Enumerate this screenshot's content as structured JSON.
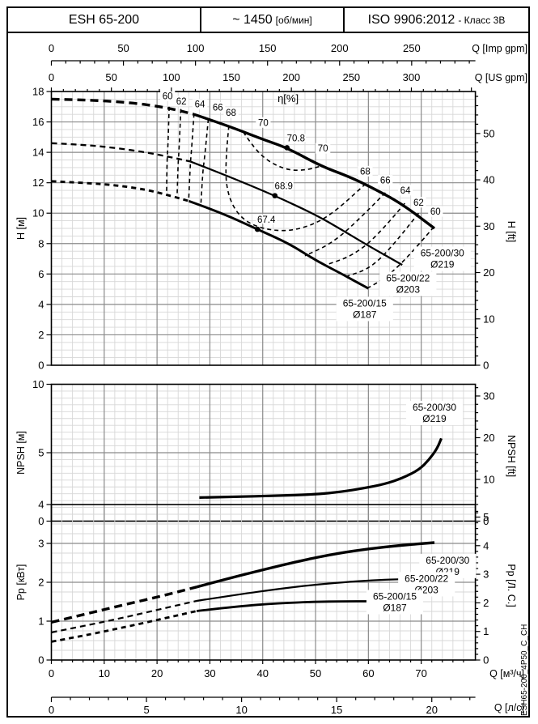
{
  "header": {
    "model": "ESH 65-200",
    "speed": "~ 1450",
    "speed_unit": "[об/мин]",
    "standard": "ISO 9906:2012",
    "standard_class": "- Класс 3В"
  },
  "side_label": "ESH65-200_4P50_C_CH",
  "flow_axes": {
    "imp_gpm": {
      "label": "Q [Imp gpm]",
      "ticks": [
        0,
        50,
        100,
        150,
        200,
        250
      ],
      "minor_step": 10,
      "max_minor": 290,
      "m3h_per_unit": 0.27276
    },
    "us_gpm": {
      "label": "Q [US gpm]",
      "ticks": [
        0,
        50,
        100,
        150,
        200,
        250,
        300
      ],
      "minor_step": 10,
      "max_minor": 350,
      "m3h_per_unit": 0.22712
    },
    "m3h": {
      "label": "Q [м³/ч]",
      "ticks": [
        0,
        10,
        20,
        30,
        40,
        50,
        60,
        70
      ],
      "minor_step": 2,
      "max_minor": 78,
      "m3h_per_unit": 1
    },
    "ls": {
      "label": "Q [л/с]",
      "ticks": [
        0,
        5,
        10,
        15,
        20
      ],
      "minor_step": 1,
      "max_minor": 22,
      "m3h_per_unit": 3.6
    }
  },
  "chart_data": [
    {
      "id": "head",
      "type": "line",
      "x_range_m3h": [
        0,
        80.2
      ],
      "y_left": {
        "label": "H [м]",
        "range": [
          0,
          18
        ],
        "major": 2,
        "minor": 0.5
      },
      "y_right": {
        "label": "H [ft]",
        "m_per_unit": 0.3048,
        "label_step": 10,
        "minor_step": 2,
        "max": 58
      },
      "series": [
        {
          "name": "65-200/30",
          "diameter": "Ø219",
          "dashed": [
            [
              0,
              17.5
            ],
            [
              6,
              17.45
            ],
            [
              12,
              17.35
            ],
            [
              18,
              17.15
            ],
            [
              23,
              16.85
            ],
            [
              27,
              16.5
            ]
          ],
          "solid": [
            [
              27,
              16.5
            ],
            [
              33,
              15.8
            ],
            [
              40,
              14.85
            ],
            [
              44.6,
              14.3
            ],
            [
              51,
              13.1
            ],
            [
              56,
              12.45
            ],
            [
              60,
              11.8
            ],
            [
              66,
              10.7
            ],
            [
              72.5,
              9.0
            ]
          ],
          "bep": {
            "q": 44.6,
            "v": 14.3,
            "eff": "70.8"
          },
          "label_at": [
            74,
            7.0
          ],
          "weight": 3.4,
          "dash": "10 6"
        },
        {
          "name": "65-200/22",
          "diameter": "Ø203",
          "dashed": [
            [
              0,
              14.6
            ],
            [
              6,
              14.5
            ],
            [
              12,
              14.3
            ],
            [
              18,
              14.0
            ],
            [
              23,
              13.65
            ],
            [
              26.3,
              13.4
            ]
          ],
          "solid": [
            [
              26.3,
              13.4
            ],
            [
              33,
              12.5
            ],
            [
              42.3,
              11.15
            ],
            [
              50,
              9.9
            ],
            [
              55,
              8.9
            ],
            [
              60,
              7.85
            ],
            [
              66.4,
              6.6
            ]
          ],
          "bep": {
            "q": 42.3,
            "v": 11.15,
            "eff": "68.9"
          },
          "label_at": [
            67.5,
            5.35
          ],
          "weight": 2.3,
          "dash": "7 5"
        },
        {
          "name": "65-200/15",
          "diameter": "Ø187",
          "dashed": [
            [
              0,
              12.1
            ],
            [
              6,
              12.0
            ],
            [
              12,
              11.85
            ],
            [
              18,
              11.55
            ],
            [
              23,
              11.1
            ],
            [
              26,
              10.8
            ]
          ],
          "solid": [
            [
              26,
              10.8
            ],
            [
              32,
              10.05
            ],
            [
              39,
              8.94
            ],
            [
              45,
              8.0
            ],
            [
              50,
              6.9
            ],
            [
              55,
              6.0
            ],
            [
              60,
              5.05
            ]
          ],
          "bep": {
            "q": 39,
            "v": 8.94,
            "eff": "67.4"
          },
          "label_at": [
            59.3,
            3.7
          ],
          "weight": 2.9,
          "dash": "6 5"
        }
      ],
      "efficiency_label": {
        "text": "η[%]",
        "q": 44.8,
        "h": 17.3
      },
      "efficiency_contours": [
        {
          "value": 60,
          "points": [
            [
              22.3,
              17.0
            ],
            [
              22.1,
              14.6
            ],
            [
              21.9,
              13.6
            ],
            [
              21.8,
              11.3
            ]
          ]
        },
        {
          "value": 62,
          "points": [
            [
              24.5,
              16.85
            ],
            [
              24.2,
              14.3
            ],
            [
              24.0,
              13.4
            ],
            [
              23.8,
              11.15
            ]
          ]
        },
        {
          "value": 64,
          "points": [
            [
              27.0,
              16.55
            ],
            [
              26.5,
              14.0
            ],
            [
              26.3,
              13.3
            ],
            [
              26.0,
              10.95
            ]
          ]
        },
        {
          "value": 66,
          "points": [
            [
              29.7,
              16.2
            ],
            [
              29.0,
              13.6
            ],
            [
              28.7,
              12.9
            ],
            [
              28.3,
              10.6
            ]
          ]
        },
        {
          "value": 68,
          "points": [
            [
              33.6,
              15.75
            ],
            [
              32.8,
              13.0
            ],
            [
              33.5,
              11.0
            ],
            [
              36,
              9.6
            ],
            [
              40,
              8.95
            ],
            [
              45,
              8.8
            ],
            [
              50,
              9.3
            ],
            [
              54,
              10.2
            ],
            [
              59.4,
              11.9
            ]
          ]
        },
        {
          "value": 70,
          "points": [
            [
              36.3,
              15.35
            ],
            [
              38.5,
              14.2
            ],
            [
              41.5,
              13.3
            ],
            [
              45,
              12.8
            ],
            [
              48.5,
              12.85
            ],
            [
              51,
              13.1
            ]
          ]
        },
        {
          "value": 66,
          "points": [
            [
              63.2,
              11.35
            ],
            [
              58,
              9.5
            ],
            [
              53,
              8.0
            ],
            [
              48,
              7.2
            ]
          ]
        },
        {
          "value": 64,
          "points": [
            [
              66.9,
              10.65
            ],
            [
              62,
              8.6
            ],
            [
              57,
              7.2
            ],
            [
              52,
              6.6
            ]
          ]
        },
        {
          "value": 62,
          "points": [
            [
              69.5,
              10.0
            ],
            [
              65,
              8.0
            ],
            [
              60.5,
              6.4
            ],
            [
              56,
              5.85
            ]
          ]
        },
        {
          "value": 60,
          "points": [
            [
              72.4,
              9.1
            ],
            [
              68,
              7.3
            ],
            [
              63.5,
              5.8
            ],
            [
              60,
              5.1
            ]
          ]
        }
      ],
      "efficiency_value_labels": [
        {
          "text": "60",
          "q": 22.0,
          "h": 17.5
        },
        {
          "text": "62",
          "q": 24.6,
          "h": 17.15
        },
        {
          "text": "64",
          "q": 28.1,
          "h": 16.95
        },
        {
          "text": "66",
          "q": 31.5,
          "h": 16.75
        },
        {
          "text": "68",
          "q": 34.0,
          "h": 16.4
        },
        {
          "text": "70",
          "q": 40.1,
          "h": 15.75
        },
        {
          "text": "70",
          "q": 51.4,
          "h": 14.05
        },
        {
          "text": "68",
          "q": 59.4,
          "h": 12.55
        },
        {
          "text": "66",
          "q": 63.2,
          "h": 11.95
        },
        {
          "text": "64",
          "q": 67.0,
          "h": 11.3
        },
        {
          "text": "62",
          "q": 69.5,
          "h": 10.5
        },
        {
          "text": "60",
          "q": 72.7,
          "h": 9.9
        }
      ]
    },
    {
      "id": "npsh",
      "type": "line",
      "x_range_m3h": [
        0,
        80.2
      ],
      "y_left": {
        "label": "NPSH [м]",
        "range": [
          0,
          10
        ],
        "major": 5,
        "minor": 0.5
      },
      "y_right": {
        "label": "NPSH [ft]",
        "m_per_unit": 0.3048,
        "label_step": 10,
        "minor_step": 2,
        "max": 32
      },
      "series": [
        {
          "name": "65-200/30",
          "diameter": "Ø219",
          "solid": [
            [
              28,
              1.72
            ],
            [
              35,
              1.78
            ],
            [
              42,
              1.85
            ],
            [
              50,
              1.95
            ],
            [
              55,
              2.15
            ],
            [
              59,
              2.4
            ],
            [
              63,
              2.7
            ],
            [
              66.5,
              3.15
            ],
            [
              69.6,
              3.76
            ],
            [
              71.5,
              4.5
            ],
            [
              73,
              5.3
            ],
            [
              73.8,
              6.05
            ]
          ],
          "label_at": [
            72.5,
            7.9
          ],
          "weight": 3.2,
          "dash": "10 6"
        }
      ]
    },
    {
      "id": "power",
      "type": "line",
      "x_range_m3h": [
        0,
        80.2
      ],
      "y_left": {
        "label": "Pp [кВт]",
        "range": [
          0,
          4
        ],
        "major": 1,
        "minor": 0.25
      },
      "y_right": {
        "label": "Pp [Л. С.]",
        "m_per_unit": 0.73549,
        "label_step": 1,
        "minor_step": 0.2,
        "max": 5.2
      },
      "series": [
        {
          "name": "65-200/30",
          "diameter": "Ø219",
          "dashed": [
            [
              0,
              0.97
            ],
            [
              7,
              1.2
            ],
            [
              14,
              1.43
            ],
            [
              21,
              1.65
            ],
            [
              27.5,
              1.88
            ]
          ],
          "solid": [
            [
              27.5,
              1.88
            ],
            [
              33,
              2.08
            ],
            [
              40,
              2.32
            ],
            [
              47,
              2.55
            ],
            [
              54,
              2.74
            ],
            [
              60,
              2.86
            ],
            [
              66,
              2.95
            ],
            [
              72.5,
              3.02
            ]
          ],
          "label_at": [
            75,
            2.42
          ],
          "weight": 3.4,
          "dash": "10 6"
        },
        {
          "name": "65-200/22",
          "diameter": "Ø203",
          "dashed": [
            [
              0,
              0.71
            ],
            [
              7,
              0.9
            ],
            [
              14,
              1.1
            ],
            [
              21,
              1.32
            ],
            [
              27.5,
              1.52
            ]
          ],
          "solid": [
            [
              27.5,
              1.52
            ],
            [
              35,
              1.68
            ],
            [
              43,
              1.83
            ],
            [
              50,
              1.94
            ],
            [
              57,
              2.02
            ],
            [
              62,
              2.06
            ],
            [
              66.4,
              2.08
            ]
          ],
          "label_at": [
            71,
            1.95
          ],
          "weight": 2.2,
          "dash": "7 5"
        },
        {
          "name": "65-200/15",
          "diameter": "Ø187",
          "dashed": [
            [
              0,
              0.47
            ],
            [
              7,
              0.65
            ],
            [
              14,
              0.85
            ],
            [
              21,
              1.06
            ],
            [
              27.5,
              1.26
            ]
          ],
          "solid": [
            [
              27.5,
              1.26
            ],
            [
              35,
              1.38
            ],
            [
              43,
              1.46
            ],
            [
              50,
              1.5
            ],
            [
              55,
              1.51
            ],
            [
              60.6,
              1.51
            ]
          ],
          "label_at": [
            65,
            1.49
          ],
          "weight": 2.8,
          "dash": "6 5"
        }
      ]
    }
  ]
}
